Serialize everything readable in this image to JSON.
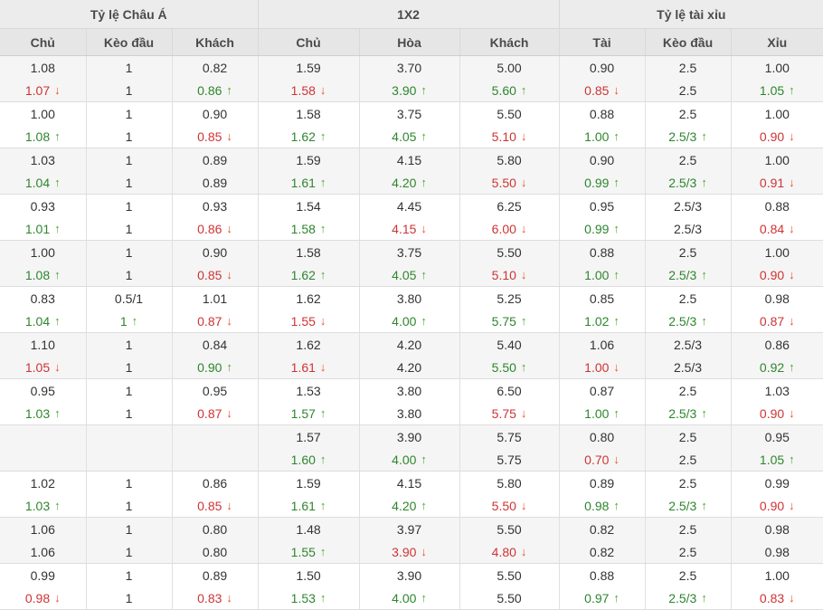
{
  "table": {
    "groups": [
      {
        "name": "asian-handicap",
        "label": "Tỷ lệ Châu Á",
        "columns": [
          "Chủ",
          "Kèo đầu",
          "Khách"
        ]
      },
      {
        "name": "1x2",
        "label": "1X2",
        "columns": [
          "Chủ",
          "Hòa",
          "Khách"
        ]
      },
      {
        "name": "over-under",
        "label": "Tỷ lệ tài xỉu",
        "columns": [
          "Tài",
          "Kèo đầu",
          "Xỉu"
        ]
      }
    ],
    "colors": {
      "value_up": "#2d862d",
      "value_down": "#cf3333",
      "arrow_up": "#4ca82e",
      "arrow_down": "#f04e23",
      "header_bg": "#ececec",
      "subheader_bg": "#e6e6e6",
      "row_shade_bg": "#f5f5f5"
    },
    "arrow_up_glyph": "↑",
    "arrow_down_glyph": "↓",
    "rows": [
      [
        {
          "v": "1.08",
          "t": ""
        },
        {
          "v": "1",
          "t": ""
        },
        {
          "v": "0.82",
          "t": ""
        },
        {
          "v": "1.59",
          "t": ""
        },
        {
          "v": "3.70",
          "t": ""
        },
        {
          "v": "5.00",
          "t": ""
        },
        {
          "v": "0.90",
          "t": ""
        },
        {
          "v": "2.5",
          "t": ""
        },
        {
          "v": "1.00",
          "t": ""
        }
      ],
      [
        {
          "v": "1.07",
          "t": "down"
        },
        {
          "v": "1",
          "t": ""
        },
        {
          "v": "0.86",
          "t": "up"
        },
        {
          "v": "1.58",
          "t": "down"
        },
        {
          "v": "3.90",
          "t": "up"
        },
        {
          "v": "5.60",
          "t": "up"
        },
        {
          "v": "0.85",
          "t": "down"
        },
        {
          "v": "2.5",
          "t": ""
        },
        {
          "v": "1.05",
          "t": "up"
        }
      ],
      [
        {
          "v": "1.00",
          "t": ""
        },
        {
          "v": "1",
          "t": ""
        },
        {
          "v": "0.90",
          "t": ""
        },
        {
          "v": "1.58",
          "t": ""
        },
        {
          "v": "3.75",
          "t": ""
        },
        {
          "v": "5.50",
          "t": ""
        },
        {
          "v": "0.88",
          "t": ""
        },
        {
          "v": "2.5",
          "t": ""
        },
        {
          "v": "1.00",
          "t": ""
        }
      ],
      [
        {
          "v": "1.08",
          "t": "up"
        },
        {
          "v": "1",
          "t": ""
        },
        {
          "v": "0.85",
          "t": "down"
        },
        {
          "v": "1.62",
          "t": "up"
        },
        {
          "v": "4.05",
          "t": "up"
        },
        {
          "v": "5.10",
          "t": "down"
        },
        {
          "v": "1.00",
          "t": "up"
        },
        {
          "v": "2.5/3",
          "t": "up"
        },
        {
          "v": "0.90",
          "t": "down"
        }
      ],
      [
        {
          "v": "1.03",
          "t": ""
        },
        {
          "v": "1",
          "t": ""
        },
        {
          "v": "0.89",
          "t": ""
        },
        {
          "v": "1.59",
          "t": ""
        },
        {
          "v": "4.15",
          "t": ""
        },
        {
          "v": "5.80",
          "t": ""
        },
        {
          "v": "0.90",
          "t": ""
        },
        {
          "v": "2.5",
          "t": ""
        },
        {
          "v": "1.00",
          "t": ""
        }
      ],
      [
        {
          "v": "1.04",
          "t": "up"
        },
        {
          "v": "1",
          "t": ""
        },
        {
          "v": "0.89",
          "t": ""
        },
        {
          "v": "1.61",
          "t": "up"
        },
        {
          "v": "4.20",
          "t": "up"
        },
        {
          "v": "5.50",
          "t": "down"
        },
        {
          "v": "0.99",
          "t": "up"
        },
        {
          "v": "2.5/3",
          "t": "up"
        },
        {
          "v": "0.91",
          "t": "down"
        }
      ],
      [
        {
          "v": "0.93",
          "t": ""
        },
        {
          "v": "1",
          "t": ""
        },
        {
          "v": "0.93",
          "t": ""
        },
        {
          "v": "1.54",
          "t": ""
        },
        {
          "v": "4.45",
          "t": ""
        },
        {
          "v": "6.25",
          "t": ""
        },
        {
          "v": "0.95",
          "t": ""
        },
        {
          "v": "2.5/3",
          "t": ""
        },
        {
          "v": "0.88",
          "t": ""
        }
      ],
      [
        {
          "v": "1.01",
          "t": "up"
        },
        {
          "v": "1",
          "t": ""
        },
        {
          "v": "0.86",
          "t": "down"
        },
        {
          "v": "1.58",
          "t": "up"
        },
        {
          "v": "4.15",
          "t": "down"
        },
        {
          "v": "6.00",
          "t": "down"
        },
        {
          "v": "0.99",
          "t": "up"
        },
        {
          "v": "2.5/3",
          "t": ""
        },
        {
          "v": "0.84",
          "t": "down"
        }
      ],
      [
        {
          "v": "1.00",
          "t": ""
        },
        {
          "v": "1",
          "t": ""
        },
        {
          "v": "0.90",
          "t": ""
        },
        {
          "v": "1.58",
          "t": ""
        },
        {
          "v": "3.75",
          "t": ""
        },
        {
          "v": "5.50",
          "t": ""
        },
        {
          "v": "0.88",
          "t": ""
        },
        {
          "v": "2.5",
          "t": ""
        },
        {
          "v": "1.00",
          "t": ""
        }
      ],
      [
        {
          "v": "1.08",
          "t": "up"
        },
        {
          "v": "1",
          "t": ""
        },
        {
          "v": "0.85",
          "t": "down"
        },
        {
          "v": "1.62",
          "t": "up"
        },
        {
          "v": "4.05",
          "t": "up"
        },
        {
          "v": "5.10",
          "t": "down"
        },
        {
          "v": "1.00",
          "t": "up"
        },
        {
          "v": "2.5/3",
          "t": "up"
        },
        {
          "v": "0.90",
          "t": "down"
        }
      ],
      [
        {
          "v": "0.83",
          "t": ""
        },
        {
          "v": "0.5/1",
          "t": ""
        },
        {
          "v": "1.01",
          "t": ""
        },
        {
          "v": "1.62",
          "t": ""
        },
        {
          "v": "3.80",
          "t": ""
        },
        {
          "v": "5.25",
          "t": ""
        },
        {
          "v": "0.85",
          "t": ""
        },
        {
          "v": "2.5",
          "t": ""
        },
        {
          "v": "0.98",
          "t": ""
        }
      ],
      [
        {
          "v": "1.04",
          "t": "up"
        },
        {
          "v": "1",
          "t": "up"
        },
        {
          "v": "0.87",
          "t": "down"
        },
        {
          "v": "1.55",
          "t": "down"
        },
        {
          "v": "4.00",
          "t": "up"
        },
        {
          "v": "5.75",
          "t": "up"
        },
        {
          "v": "1.02",
          "t": "up"
        },
        {
          "v": "2.5/3",
          "t": "up"
        },
        {
          "v": "0.87",
          "t": "down"
        }
      ],
      [
        {
          "v": "1.10",
          "t": ""
        },
        {
          "v": "1",
          "t": ""
        },
        {
          "v": "0.84",
          "t": ""
        },
        {
          "v": "1.62",
          "t": ""
        },
        {
          "v": "4.20",
          "t": ""
        },
        {
          "v": "5.40",
          "t": ""
        },
        {
          "v": "1.06",
          "t": ""
        },
        {
          "v": "2.5/3",
          "t": ""
        },
        {
          "v": "0.86",
          "t": ""
        }
      ],
      [
        {
          "v": "1.05",
          "t": "down"
        },
        {
          "v": "1",
          "t": ""
        },
        {
          "v": "0.90",
          "t": "up"
        },
        {
          "v": "1.61",
          "t": "down"
        },
        {
          "v": "4.20",
          "t": ""
        },
        {
          "v": "5.50",
          "t": "up"
        },
        {
          "v": "1.00",
          "t": "down"
        },
        {
          "v": "2.5/3",
          "t": ""
        },
        {
          "v": "0.92",
          "t": "up"
        }
      ],
      [
        {
          "v": "0.95",
          "t": ""
        },
        {
          "v": "1",
          "t": ""
        },
        {
          "v": "0.95",
          "t": ""
        },
        {
          "v": "1.53",
          "t": ""
        },
        {
          "v": "3.80",
          "t": ""
        },
        {
          "v": "6.50",
          "t": ""
        },
        {
          "v": "0.87",
          "t": ""
        },
        {
          "v": "2.5",
          "t": ""
        },
        {
          "v": "1.03",
          "t": ""
        }
      ],
      [
        {
          "v": "1.03",
          "t": "up"
        },
        {
          "v": "1",
          "t": ""
        },
        {
          "v": "0.87",
          "t": "down"
        },
        {
          "v": "1.57",
          "t": "up"
        },
        {
          "v": "3.80",
          "t": ""
        },
        {
          "v": "5.75",
          "t": "down"
        },
        {
          "v": "1.00",
          "t": "up"
        },
        {
          "v": "2.5/3",
          "t": "up"
        },
        {
          "v": "0.90",
          "t": "down"
        }
      ],
      [
        {
          "v": "",
          "t": ""
        },
        {
          "v": "",
          "t": ""
        },
        {
          "v": "",
          "t": ""
        },
        {
          "v": "1.57",
          "t": ""
        },
        {
          "v": "3.90",
          "t": ""
        },
        {
          "v": "5.75",
          "t": ""
        },
        {
          "v": "0.80",
          "t": ""
        },
        {
          "v": "2.5",
          "t": ""
        },
        {
          "v": "0.95",
          "t": ""
        }
      ],
      [
        {
          "v": "",
          "t": ""
        },
        {
          "v": "",
          "t": ""
        },
        {
          "v": "",
          "t": ""
        },
        {
          "v": "1.60",
          "t": "up"
        },
        {
          "v": "4.00",
          "t": "up"
        },
        {
          "v": "5.75",
          "t": ""
        },
        {
          "v": "0.70",
          "t": "down"
        },
        {
          "v": "2.5",
          "t": ""
        },
        {
          "v": "1.05",
          "t": "up"
        }
      ],
      [
        {
          "v": "1.02",
          "t": ""
        },
        {
          "v": "1",
          "t": ""
        },
        {
          "v": "0.86",
          "t": ""
        },
        {
          "v": "1.59",
          "t": ""
        },
        {
          "v": "4.15",
          "t": ""
        },
        {
          "v": "5.80",
          "t": ""
        },
        {
          "v": "0.89",
          "t": ""
        },
        {
          "v": "2.5",
          "t": ""
        },
        {
          "v": "0.99",
          "t": ""
        }
      ],
      [
        {
          "v": "1.03",
          "t": "up"
        },
        {
          "v": "1",
          "t": ""
        },
        {
          "v": "0.85",
          "t": "down"
        },
        {
          "v": "1.61",
          "t": "up"
        },
        {
          "v": "4.20",
          "t": "up"
        },
        {
          "v": "5.50",
          "t": "down"
        },
        {
          "v": "0.98",
          "t": "up"
        },
        {
          "v": "2.5/3",
          "t": "up"
        },
        {
          "v": "0.90",
          "t": "down"
        }
      ],
      [
        {
          "v": "1.06",
          "t": ""
        },
        {
          "v": "1",
          "t": ""
        },
        {
          "v": "0.80",
          "t": ""
        },
        {
          "v": "1.48",
          "t": ""
        },
        {
          "v": "3.97",
          "t": ""
        },
        {
          "v": "5.50",
          "t": ""
        },
        {
          "v": "0.82",
          "t": ""
        },
        {
          "v": "2.5",
          "t": ""
        },
        {
          "v": "0.98",
          "t": ""
        }
      ],
      [
        {
          "v": "1.06",
          "t": ""
        },
        {
          "v": "1",
          "t": ""
        },
        {
          "v": "0.80",
          "t": ""
        },
        {
          "v": "1.55",
          "t": "up"
        },
        {
          "v": "3.90",
          "t": "down"
        },
        {
          "v": "4.80",
          "t": "down"
        },
        {
          "v": "0.82",
          "t": ""
        },
        {
          "v": "2.5",
          "t": ""
        },
        {
          "v": "0.98",
          "t": ""
        }
      ],
      [
        {
          "v": "0.99",
          "t": ""
        },
        {
          "v": "1",
          "t": ""
        },
        {
          "v": "0.89",
          "t": ""
        },
        {
          "v": "1.50",
          "t": ""
        },
        {
          "v": "3.90",
          "t": ""
        },
        {
          "v": "5.50",
          "t": ""
        },
        {
          "v": "0.88",
          "t": ""
        },
        {
          "v": "2.5",
          "t": ""
        },
        {
          "v": "1.00",
          "t": ""
        }
      ],
      [
        {
          "v": "0.98",
          "t": "down"
        },
        {
          "v": "1",
          "t": ""
        },
        {
          "v": "0.83",
          "t": "down"
        },
        {
          "v": "1.53",
          "t": "up"
        },
        {
          "v": "4.00",
          "t": "up"
        },
        {
          "v": "5.50",
          "t": ""
        },
        {
          "v": "0.97",
          "t": "up"
        },
        {
          "v": "2.5/3",
          "t": "up"
        },
        {
          "v": "0.83",
          "t": "down"
        }
      ]
    ]
  }
}
